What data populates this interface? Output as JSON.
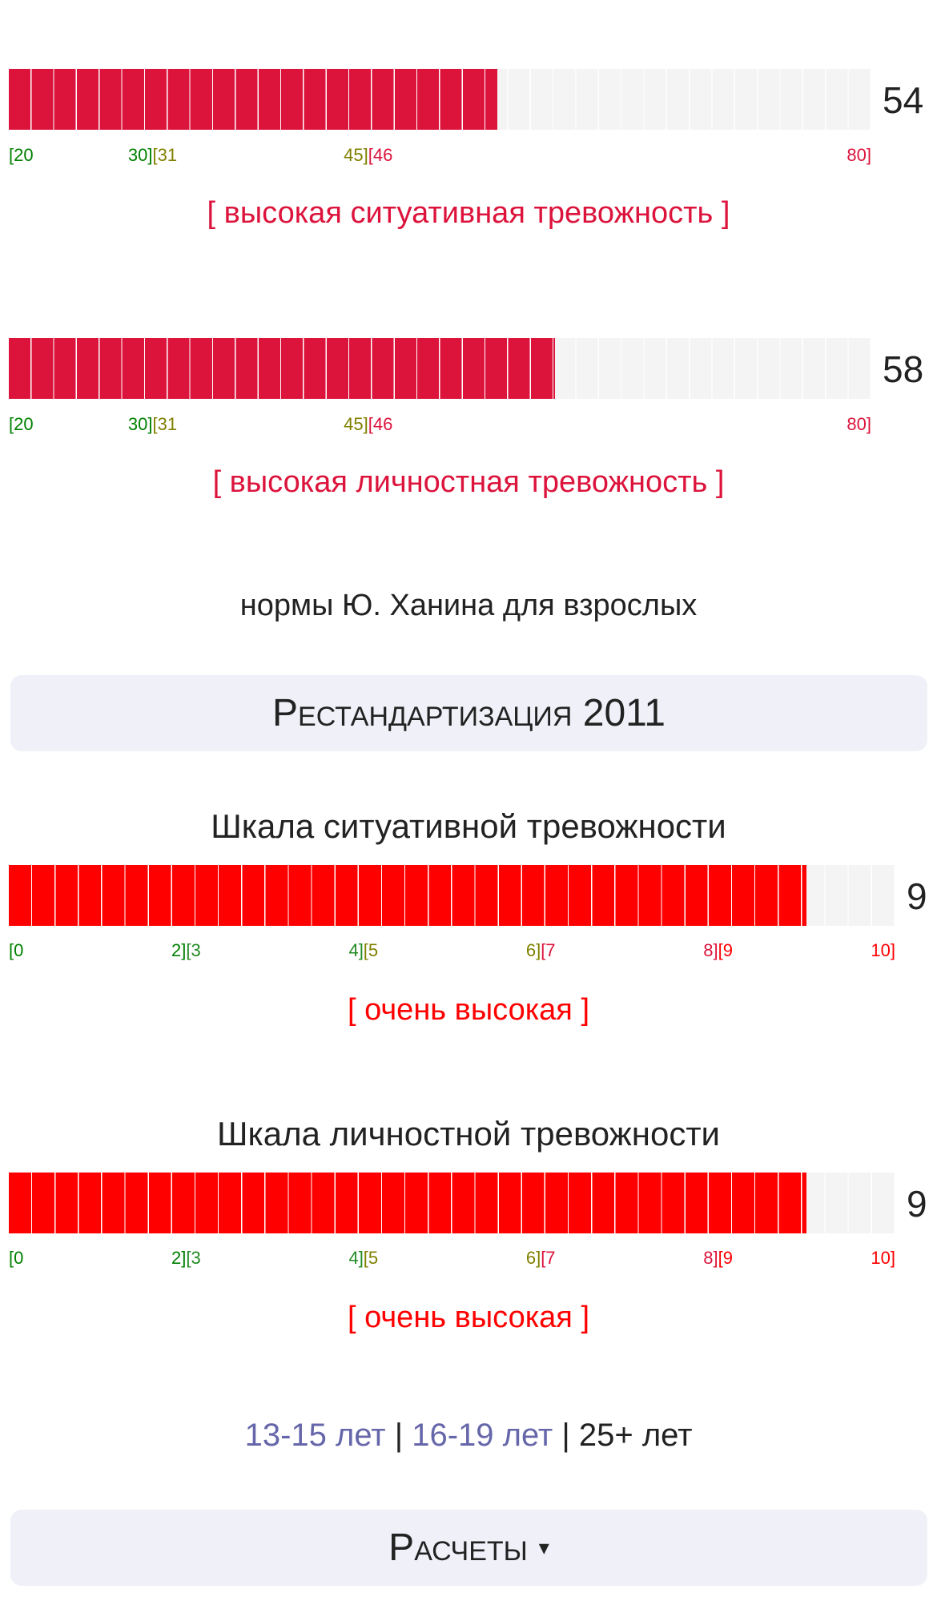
{
  "scales_spielberger": [
    {
      "value": 54,
      "value_label": "54",
      "min": 20,
      "max": 80,
      "segments": 38,
      "fill_color": "#DC143C",
      "ranges": [
        {
          "lo": "[20",
          "hi": "30]",
          "lo_v": 20,
          "hi_v": 30,
          "color": "#008000"
        },
        {
          "lo": "[31",
          "hi": "45]",
          "lo_v": 31,
          "hi_v": 45,
          "color": "#808000"
        },
        {
          "lo": "[46",
          "hi": "80]",
          "lo_v": 46,
          "hi_v": 80,
          "color": "#DC143C"
        }
      ],
      "status": "[ высокая ситуативная тревожность ]",
      "status_color": "#DC143C"
    },
    {
      "value": 58,
      "value_label": "58",
      "min": 20,
      "max": 80,
      "segments": 38,
      "fill_color": "#DC143C",
      "ranges": [
        {
          "lo": "[20",
          "hi": "30]",
          "lo_v": 20,
          "hi_v": 30,
          "color": "#008000"
        },
        {
          "lo": "[31",
          "hi": "45]",
          "lo_v": 31,
          "hi_v": 45,
          "color": "#808000"
        },
        {
          "lo": "[46",
          "hi": "80]",
          "lo_v": 46,
          "hi_v": 80,
          "color": "#DC143C"
        }
      ],
      "status": "[ высокая личностная тревожность ]",
      "status_color": "#DC143C"
    }
  ],
  "norms_note": "нормы Ю. Ханина для взрослых",
  "restandard_button": "Рестандартизация 2011",
  "scales_2011": [
    {
      "title": "Шкала ситуативной тревожности",
      "value": 9,
      "value_label": "9",
      "min": 0,
      "max": 10,
      "segments": 38,
      "fill_color": "#FF0000",
      "ranges": [
        {
          "lo": "[0",
          "hi": "2]",
          "lo_v": 0,
          "hi_v": 2,
          "color": "#008000"
        },
        {
          "lo": "[3",
          "hi": "4]",
          "lo_v": 3,
          "hi_v": 4,
          "color": "#228B22"
        },
        {
          "lo": "[5",
          "hi": "6]",
          "lo_v": 5,
          "hi_v": 6,
          "color": "#808000"
        },
        {
          "lo": "[7",
          "hi": "8]",
          "lo_v": 7,
          "hi_v": 8,
          "color": "#DC143C"
        },
        {
          "lo": "[9",
          "hi": "10]",
          "lo_v": 9,
          "hi_v": 10,
          "color": "#FF0000"
        }
      ],
      "status": "[ очень высокая ]",
      "status_color": "#FF0000"
    },
    {
      "title": "Шкала личностной тревожности",
      "value": 9,
      "value_label": "9",
      "min": 0,
      "max": 10,
      "segments": 38,
      "fill_color": "#FF0000",
      "ranges": [
        {
          "lo": "[0",
          "hi": "2]",
          "lo_v": 0,
          "hi_v": 2,
          "color": "#008000"
        },
        {
          "lo": "[3",
          "hi": "4]",
          "lo_v": 3,
          "hi_v": 4,
          "color": "#228B22"
        },
        {
          "lo": "[5",
          "hi": "6]",
          "lo_v": 5,
          "hi_v": 6,
          "color": "#808000"
        },
        {
          "lo": "[7",
          "hi": "8]",
          "lo_v": 7,
          "hi_v": 8,
          "color": "#DC143C"
        },
        {
          "lo": "[9",
          "hi": "10]",
          "lo_v": 9,
          "hi_v": 10,
          "color": "#FF0000"
        }
      ],
      "status": "[ очень высокая ]",
      "status_color": "#FF0000"
    }
  ],
  "age_links": {
    "a": "13-15 лет",
    "sep": "|",
    "b": "16-19 лет",
    "c": "25+ лет",
    "link_color": "#6666AA"
  },
  "calc_button": {
    "label": "Расчеты",
    "arrow": "▾"
  }
}
